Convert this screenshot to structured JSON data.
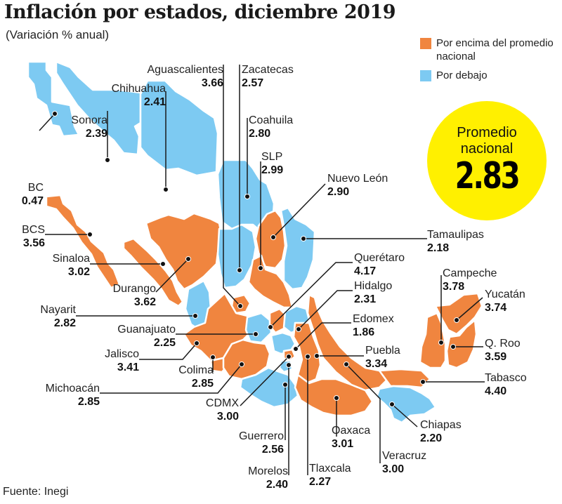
{
  "header": {
    "title": "Inflación por estados, diciembre 2019",
    "subtitle": "(Variación % anual)"
  },
  "legend": [
    {
      "label": "Por encima del promedio nacional",
      "color": "#f0853f"
    },
    {
      "label": "Por debajo",
      "color": "#7dcaf2"
    }
  ],
  "national_average": {
    "label_line1": "Promedio",
    "label_line2": "nacional",
    "value": "2.83",
    "color": "#fff000"
  },
  "colors": {
    "above": "#f0853f",
    "below": "#7dcaf2",
    "leader": "#1a1a1a"
  },
  "source": "Fuente: Inegi",
  "chart_data": {
    "type": "map",
    "title": "Inflación por estados, diciembre 2019",
    "subtitle": "(Variación % anual)",
    "reference_value": 2.83,
    "reference_label": "Promedio nacional",
    "legend": [
      "Por encima del promedio nacional",
      "Por debajo"
    ],
    "states": [
      {
        "id": "bc",
        "name": "BC",
        "value": "0.47",
        "category": "below"
      },
      {
        "id": "sonora",
        "name": "Sonora",
        "value": "2.39",
        "category": "below"
      },
      {
        "id": "chihuahua",
        "name": "Chihuahua",
        "value": "2.41",
        "category": "below"
      },
      {
        "id": "aguascalientes",
        "name": "Aguascalientes",
        "value": "3.66",
        "category": "above"
      },
      {
        "id": "zacatecas",
        "name": "Zacatecas",
        "value": "2.57",
        "category": "below"
      },
      {
        "id": "coahuila",
        "name": "Coahuila",
        "value": "2.80",
        "category": "below"
      },
      {
        "id": "slp",
        "name": "SLP",
        "value": "2.99",
        "category": "above"
      },
      {
        "id": "nuevoleon",
        "name": "Nuevo León",
        "value": "2.90",
        "category": "above"
      },
      {
        "id": "tamaulipas",
        "name": "Tamaulipas",
        "value": "2.18",
        "category": "below"
      },
      {
        "id": "bcs",
        "name": "BCS",
        "value": "3.56",
        "category": "above"
      },
      {
        "id": "sinaloa",
        "name": "Sinaloa",
        "value": "3.02",
        "category": "above"
      },
      {
        "id": "durango",
        "name": "Durango",
        "value": "3.62",
        "category": "above"
      },
      {
        "id": "nayarit",
        "name": "Nayarit",
        "value": "2.82",
        "category": "below"
      },
      {
        "id": "guanajuato",
        "name": "Guanajuato",
        "value": "2.25",
        "category": "below"
      },
      {
        "id": "queretaro",
        "name": "Querétaro",
        "value": "4.17",
        "category": "above"
      },
      {
        "id": "hidalgo",
        "name": "Hidalgo",
        "value": "2.31",
        "category": "below"
      },
      {
        "id": "edomex",
        "name": "Edomex",
        "value": "1.86",
        "category": "below"
      },
      {
        "id": "jalisco",
        "name": "Jalisco",
        "value": "3.41",
        "category": "above"
      },
      {
        "id": "colima",
        "name": "Colima",
        "value": "2.85",
        "category": "above"
      },
      {
        "id": "michoacan",
        "name": "Michoacán",
        "value": "2.85",
        "category": "above"
      },
      {
        "id": "cdmx",
        "name": "CDMX",
        "value": "3.00",
        "category": "above"
      },
      {
        "id": "puebla",
        "name": "Puebla",
        "value": "3.34",
        "category": "above"
      },
      {
        "id": "guerrero",
        "name": "Guerrero",
        "value": "2.56",
        "category": "below"
      },
      {
        "id": "morelos",
        "name": "Morelos",
        "value": "2.40",
        "category": "below"
      },
      {
        "id": "tlaxcala",
        "name": "Tlaxcala",
        "value": "2.27",
        "category": "below"
      },
      {
        "id": "oaxaca",
        "name": "Oaxaca",
        "value": "3.01",
        "category": "above"
      },
      {
        "id": "veracruz",
        "name": "Veracruz",
        "value": "3.00",
        "category": "above"
      },
      {
        "id": "chiapas",
        "name": "Chiapas",
        "value": "2.20",
        "category": "below"
      },
      {
        "id": "tabasco",
        "name": "Tabasco",
        "value": "4.40",
        "category": "above"
      },
      {
        "id": "campeche",
        "name": "Campeche",
        "value": "3.78",
        "category": "above"
      },
      {
        "id": "yucatan",
        "name": "Yucatán",
        "value": "3.74",
        "category": "above"
      },
      {
        "id": "qroo",
        "name": "Q. Roo",
        "value": "3.59",
        "category": "above"
      }
    ]
  }
}
